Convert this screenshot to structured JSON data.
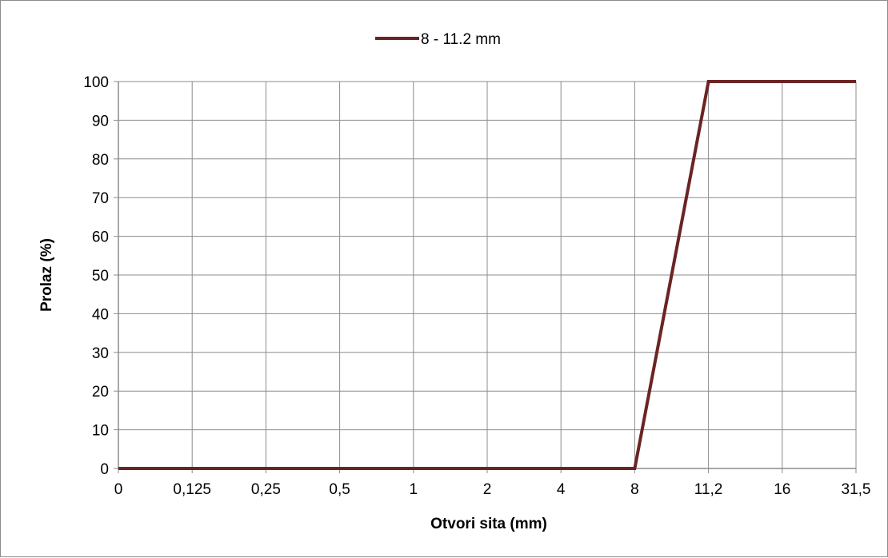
{
  "chart_data": {
    "type": "line",
    "title": "",
    "xlabel": "Otvori sita (mm)",
    "ylabel": "Prolaz (%)",
    "categories": [
      "0",
      "0,125",
      "0,25",
      "0,5",
      "1",
      "2",
      "4",
      "8",
      "11,2",
      "16",
      "31,5"
    ],
    "y_ticks": [
      "0",
      "10",
      "20",
      "30",
      "40",
      "50",
      "60",
      "70",
      "80",
      "90",
      "100"
    ],
    "ylim": [
      0,
      100
    ],
    "grid": true,
    "legend_position": "top",
    "series": [
      {
        "name": "8 - 11.2 mm",
        "color": "#6b2424",
        "values": [
          0,
          0,
          0,
          0,
          0,
          0,
          0,
          0,
          100,
          100,
          100
        ]
      }
    ]
  }
}
